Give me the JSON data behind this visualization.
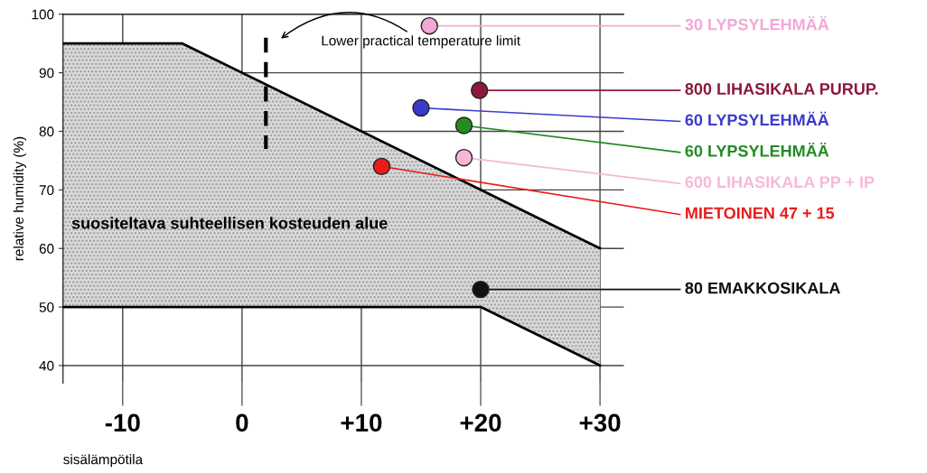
{
  "chart_data": {
    "type": "scatter",
    "xlabel": "sisälämpötila",
    "ylabel": "relative humidity (%)",
    "xlim": [
      -15,
      32
    ],
    "ylim": [
      37,
      100
    ],
    "xticks": [
      {
        "value": -10,
        "label": "-10"
      },
      0,
      {
        "value": 10,
        "label": "+10"
      },
      {
        "value": 20,
        "label": "+20"
      },
      {
        "value": 30,
        "label": "+30"
      }
    ],
    "yticks": [
      40,
      50,
      60,
      70,
      80,
      90,
      100
    ],
    "grid": true,
    "series": [
      {
        "type": "area",
        "color": "#d8d8d8",
        "x": [
          -15,
          -5,
          20,
          30
        ],
        "values": [
          95,
          95,
          70,
          60
        ]
      },
      {
        "type": "line",
        "color": "#000000",
        "line_style": "solid",
        "x": [
          -15,
          -5,
          20,
          30
        ],
        "values": [
          50,
          50,
          50,
          40
        ]
      },
      {
        "type": "line",
        "color": "#000000",
        "line_style": "dashed",
        "x": [
          2,
          2
        ],
        "values": [
          96,
          77
        ]
      },
      {
        "name": "30 LYPSYLEHMÄÄ",
        "color": "#f4a6d7",
        "x": [
          15.7
        ],
        "values": [
          98
        ],
        "marker": "circle"
      },
      {
        "name": "800 LIHASIKALA PURUP.",
        "color": "#8b1a3a",
        "x": [
          19.9
        ],
        "values": [
          87
        ],
        "marker": "circle"
      },
      {
        "name": "60 LYPSYLEHMÄÄ",
        "color": "#3a3acc",
        "x": [
          15
        ],
        "values": [
          84
        ],
        "marker": "circle"
      },
      {
        "name": "60 LYPSYLEHMÄÄ",
        "color": "#228b22",
        "x": [
          18.6
        ],
        "values": [
          81
        ],
        "marker": "circle"
      },
      {
        "name": "600 LIHASIKALA PP + IP",
        "color": "#f7b8d8",
        "x": [
          18.6
        ],
        "values": [
          75.5
        ],
        "marker": "circle"
      },
      {
        "name": "MIETOINEN 47 + 15",
        "color": "#e81c1c",
        "x": [
          11.7
        ],
        "values": [
          74
        ],
        "marker": "circle"
      },
      {
        "name": "80 EMAKKOSIKALA",
        "color": "#111111",
        "x": [
          20
        ],
        "values": [
          53
        ],
        "marker": "circle"
      }
    ],
    "annotations": [
      "Lower practical temperature limit",
      "suositeltava suhteellisen kosteuden alue"
    ]
  }
}
